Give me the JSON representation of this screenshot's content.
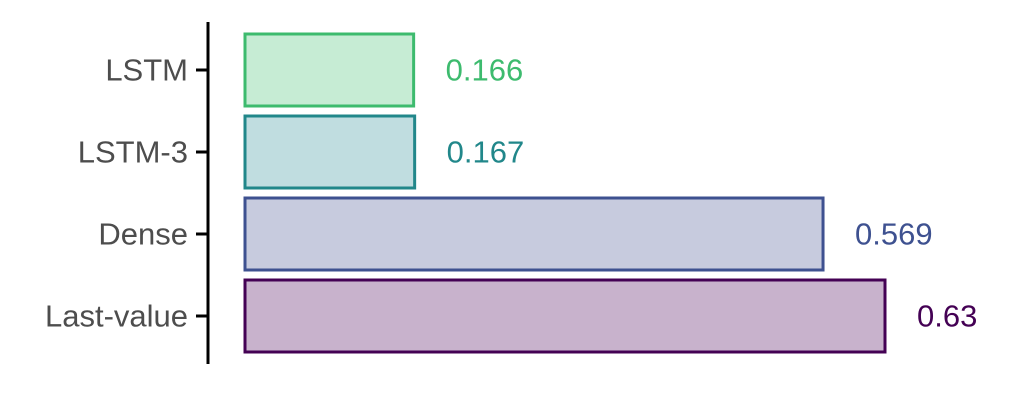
{
  "chart_data": {
    "type": "bar",
    "orientation": "horizontal",
    "categories": [
      "LSTM",
      "LSTM-3",
      "Dense",
      "Last-value"
    ],
    "values": [
      0.166,
      0.167,
      0.569,
      0.63
    ],
    "value_labels": [
      "0.166",
      "0.167",
      "0.569",
      "0.63"
    ],
    "colors": {
      "stroke": [
        "#3dbb6e",
        "#21878a",
        "#3e5190",
        "#440154"
      ],
      "fill": [
        "#c6ecd4",
        "#c0dde0",
        "#c7cbde",
        "#c8b2cc"
      ]
    },
    "title": "",
    "xlabel": "",
    "ylabel": "",
    "xlim": [
      0,
      0.63
    ],
    "grid": false,
    "legend": "none"
  }
}
